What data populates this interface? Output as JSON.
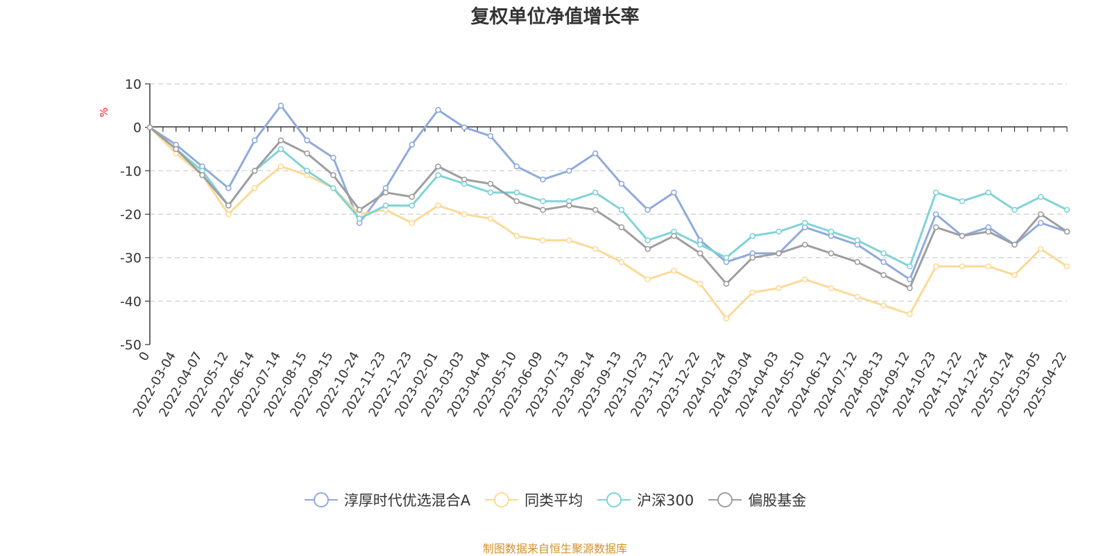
{
  "title": "复权单位净值增长率",
  "source_note": "制图数据来自恒生聚源数据库",
  "colors": {
    "淳厚时代优选混合A": "#8faadc",
    "同类平均": "#fcd995",
    "沪深300": "#7fd3d8",
    "偏股基金": "#9e9e9e"
  },
  "chart_data": {
    "type": "line",
    "title": "复权单位净值增长率",
    "ylabel": "%",
    "ylim": [
      -50,
      10
    ],
    "yticks": [
      10,
      0,
      -10,
      -20,
      -30,
      -40,
      -50
    ],
    "grid": true,
    "legend_position": "bottom",
    "xtick_labels": [
      "0",
      "2022-03-04",
      "2022-04-07",
      "2022-05-12",
      "2022-06-14",
      "2022-07-14",
      "2022-08-15",
      "2022-09-15",
      "2022-10-24",
      "2022-11-23",
      "2022-12-23",
      "2023-02-01",
      "2023-03-03",
      "2023-04-04",
      "2023-05-10",
      "2023-06-09",
      "2023-07-13",
      "2023-08-14",
      "2023-09-13",
      "2023-10-23",
      "2023-11-22",
      "2023-12-22",
      "2024-01-24",
      "2024-03-04",
      "2024-04-03",
      "2024-05-10",
      "2024-06-12",
      "2024-07-12",
      "2024-08-13",
      "2024-09-12",
      "2024-10-23",
      "2024-11-22",
      "2024-12-24",
      "2025-01-24",
      "2025-03-05",
      "2025-04-22"
    ],
    "x": [
      "0",
      "2022-03-04",
      "2022-04-07",
      "2022-05-12",
      "2022-06-14",
      "2022-07-14",
      "2022-08-15",
      "2022-09-15",
      "2022-10-24",
      "2022-11-23",
      "2022-12-23",
      "2023-02-01",
      "2023-03-03",
      "2023-04-04",
      "2023-05-10",
      "2023-06-09",
      "2023-07-13",
      "2023-08-14",
      "2023-09-13",
      "2023-10-23",
      "2023-11-22",
      "2023-12-22",
      "2024-01-24",
      "2024-03-04",
      "2024-04-03",
      "2024-05-10",
      "2024-06-12",
      "2024-07-12",
      "2024-08-13",
      "2024-09-12",
      "2024-10-23",
      "2024-11-22",
      "2024-12-24",
      "2025-01-24",
      "2025-03-05",
      "2025-04-22"
    ],
    "series": [
      {
        "name": "淳厚时代优选混合A",
        "values": [
          0,
          -4,
          -9,
          -14,
          -3,
          5,
          -3,
          -7,
          -22,
          -14,
          -4,
          4,
          0,
          -2,
          -9,
          -12,
          -10,
          -6,
          -13,
          -19,
          -15,
          -26,
          -31,
          -29,
          -29,
          -23,
          -25,
          -27,
          -31,
          -35,
          -20,
          -25,
          -23,
          -27,
          -22,
          -24
        ]
      },
      {
        "name": "同类平均",
        "values": [
          0,
          -6,
          -11,
          -20,
          -14,
          -9,
          -11,
          -14,
          -20,
          -19,
          -22,
          -18,
          -20,
          -21,
          -25,
          -26,
          -26,
          -28,
          -31,
          -35,
          -33,
          -36,
          -44,
          -38,
          -37,
          -35,
          -37,
          -39,
          -41,
          -43,
          -32,
          -32,
          -32,
          -34,
          -28,
          -32
        ]
      },
      {
        "name": "沪深300",
        "values": [
          0,
          -5,
          -10,
          -18,
          -10,
          -5,
          -10,
          -14,
          -21,
          -18,
          -18,
          -11,
          -13,
          -15,
          -15,
          -17,
          -17,
          -15,
          -19,
          -26,
          -24,
          -27,
          -30,
          -25,
          -24,
          -22,
          -24,
          -26,
          -29,
          -32,
          -15,
          -17,
          -15,
          -19,
          -16,
          -19
        ]
      },
      {
        "name": "偏股基金",
        "values": [
          0,
          -5,
          -11,
          -18,
          -10,
          -3,
          -6,
          -11,
          -19,
          -15,
          -16,
          -9,
          -12,
          -13,
          -17,
          -19,
          -18,
          -19,
          -23,
          -28,
          -25,
          -29,
          -36,
          -30,
          -29,
          -27,
          -29,
          -31,
          -34,
          -37,
          -23,
          -25,
          -24,
          -27,
          -20,
          -24
        ]
      }
    ]
  }
}
